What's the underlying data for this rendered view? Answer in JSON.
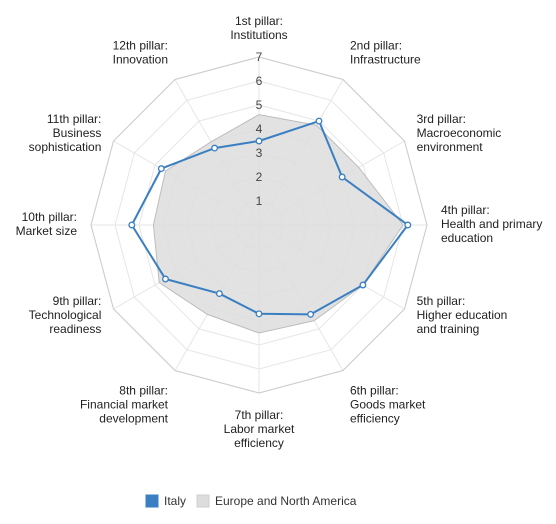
{
  "chart_data": {
    "type": "radar",
    "categories": [
      [
        "1st pillar:",
        "Institutions"
      ],
      [
        "2nd pillar:",
        "Infrastructure"
      ],
      [
        "3rd pillar:",
        "Macroeconomic",
        "environment"
      ],
      [
        "4th pillar:",
        "Health and primary",
        "education"
      ],
      [
        "5th pillar:",
        "Higher education",
        "and training"
      ],
      [
        "6th pillar:",
        "Goods market",
        "efficiency"
      ],
      [
        "7th pillar:",
        "Labor market",
        "efficiency"
      ],
      [
        "8th pillar:",
        "Financial market",
        "development"
      ],
      [
        "9th pillar:",
        "Technological",
        "readiness"
      ],
      [
        "10th pillar:",
        "Market size"
      ],
      [
        "11th pillar:",
        "Business",
        "sophistication"
      ],
      [
        "12th pillar:",
        "Innovation"
      ]
    ],
    "rlim": [
      1,
      7
    ],
    "ticks": [
      "1",
      "2",
      "3",
      "4",
      "5",
      "6",
      "7"
    ],
    "series": [
      {
        "name": "Italy",
        "color": "#3a7fc1",
        "style": "line-markers",
        "values": [
          3.5,
          5.0,
          4.0,
          6.2,
          5.0,
          4.3,
          3.7,
          3.3,
          4.5,
          5.3,
          4.7,
          3.7
        ]
      },
      {
        "name": "Europe and North America",
        "color": "#dddddd",
        "style": "area",
        "values": [
          4.6,
          4.8,
          4.8,
          6.0,
          5.0,
          4.6,
          4.5,
          4.3,
          4.8,
          4.4,
          4.5,
          4.0
        ]
      }
    ],
    "legend": "bottom",
    "grid": true
  }
}
